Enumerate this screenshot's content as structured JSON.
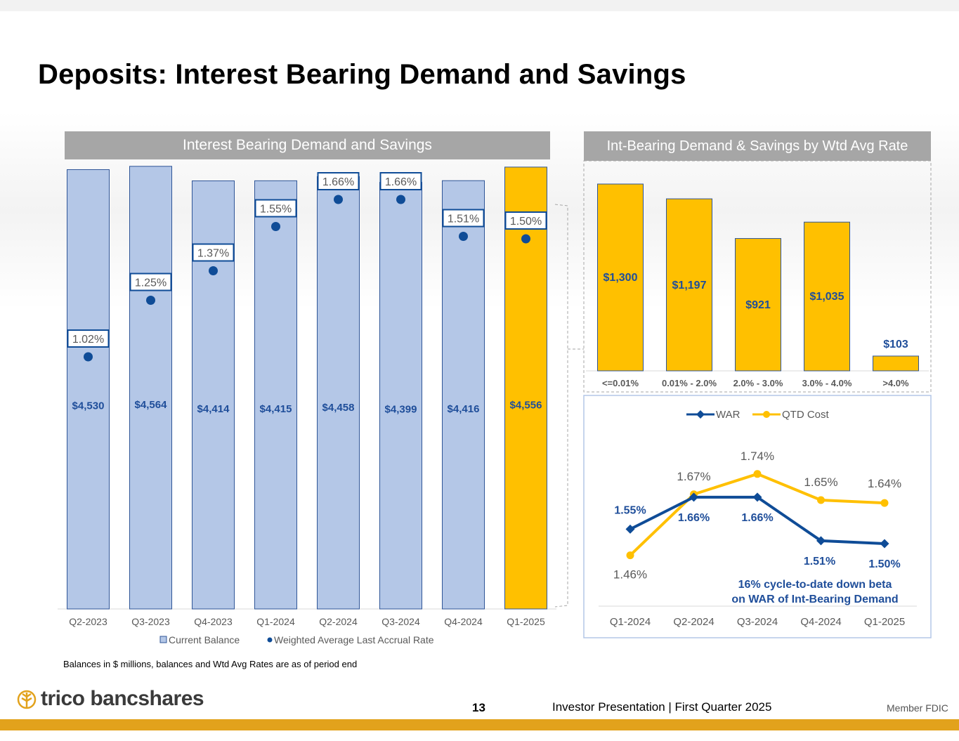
{
  "page": {
    "title": "Deposits: Interest Bearing Demand and Savings",
    "left_panel_header": "Interest Bearing Demand and Savings",
    "right_panel_header": "Int-Bearing Demand & Savings by Wtd Avg Rate",
    "footnote": "Balances in $ millions, balances and Wtd Avg Rates are as of period end",
    "page_number": "13",
    "footer_text": "Investor Presentation  |  First Quarter 2025",
    "fdic": "Member FDIC",
    "logo_text": "trico bancshares",
    "logo_icon": "wheat-icon"
  },
  "colors": {
    "bar_blue": "#b4c7e7",
    "bar_blue_stroke": "#2f5597",
    "gold": "#ffc000",
    "navy": "#0f4c97",
    "label_blue": "#1f4e9a",
    "gray_text": "#595959",
    "accent_bar": "#e2a21c"
  },
  "chart_data": [
    {
      "id": "balances",
      "type": "bar",
      "title": "Interest Bearing Demand and Savings",
      "categories": [
        "Q2-2023",
        "Q3-2023",
        "Q4-2023",
        "Q1-2024",
        "Q2-2024",
        "Q3-2024",
        "Q4-2024",
        "Q1-2025"
      ],
      "series": [
        {
          "name": "Current Balance",
          "type": "bar",
          "values": [
            4530,
            4564,
            4414,
            4415,
            4458,
            4399,
            4416,
            4556
          ],
          "value_labels": [
            "$4,530",
            "$4,564",
            "$4,414",
            "$4,415",
            "$4,458",
            "$4,399",
            "$4,416",
            "$4,556"
          ]
        },
        {
          "name": "Weighted Average Last Accrual Rate",
          "type": "scatter",
          "values": [
            1.02,
            1.25,
            1.37,
            1.55,
            1.66,
            1.66,
            1.51,
            1.5
          ],
          "value_labels": [
            "1.02%",
            "1.25%",
            "1.37%",
            "1.55%",
            "1.66%",
            "1.66%",
            "1.51%",
            "1.50%"
          ]
        }
      ],
      "highlight_category": "Q1-2025",
      "legend": [
        "Current Balance",
        "Weighted Average Last Accrual Rate"
      ],
      "legend_position": "bottom",
      "ylim": [
        0,
        4700
      ],
      "rate_ylim": [
        0,
        2.0
      ]
    },
    {
      "id": "by_rate",
      "type": "bar",
      "title": "Int-Bearing Demand & Savings by Wtd Avg Rate",
      "categories": [
        "<=0.01%",
        "0.01% - 2.0%",
        "2.0% - 3.0%",
        "3.0% - 4.0%",
        ">4.0%"
      ],
      "values": [
        1300,
        1197,
        921,
        1035,
        103
      ],
      "value_labels": [
        "$1,300",
        "$1,197",
        "$921",
        "$1,035",
        "$103"
      ],
      "ylim": [
        0,
        1330
      ]
    },
    {
      "id": "war_vs_cost",
      "type": "line",
      "categories": [
        "Q1-2024",
        "Q2-2024",
        "Q3-2024",
        "Q4-2024",
        "Q1-2025"
      ],
      "series": [
        {
          "name": "WAR",
          "values": [
            1.55,
            1.66,
            1.66,
            1.51,
            1.5
          ],
          "value_labels": [
            "1.55%",
            "1.66%",
            "1.66%",
            "1.51%",
            "1.50%"
          ]
        },
        {
          "name": "QTD Cost",
          "values": [
            1.46,
            1.67,
            1.74,
            1.65,
            1.64
          ],
          "value_labels": [
            "1.46%",
            "1.67%",
            "1.74%",
            "1.65%",
            "1.64%"
          ]
        }
      ],
      "legend": [
        "WAR",
        "QTD Cost"
      ],
      "legend_position": "top",
      "ylim": [
        1.28,
        1.8
      ],
      "annotation": [
        "16% cycle-to-date down beta",
        "on WAR of Int-Bearing Demand"
      ]
    }
  ]
}
